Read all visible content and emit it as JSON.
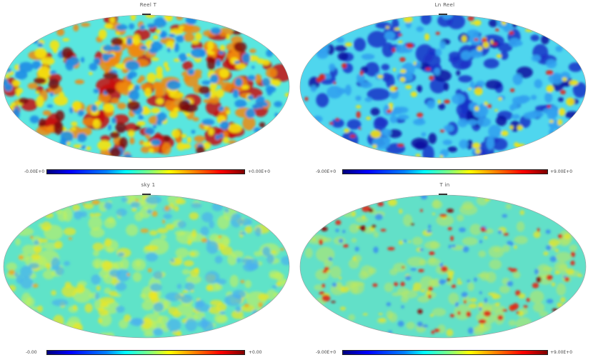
{
  "panels": [
    {
      "title": "Reel T",
      "cb_min": "-0.00E+0",
      "cb_max": "+0.00E+0",
      "background": "#59e6df",
      "features": [
        {
          "color": "#c81010",
          "count": 70,
          "rmin": 5,
          "rmax": 13,
          "opacity": 0.85
        },
        {
          "color": "#f08a12",
          "count": 120,
          "rmin": 4,
          "rmax": 9,
          "opacity": 0.85
        },
        {
          "color": "#f5e312",
          "count": 130,
          "rmin": 3,
          "rmax": 7,
          "opacity": 0.9
        },
        {
          "color": "#1f8de6",
          "count": 110,
          "rmin": 3,
          "rmax": 7,
          "opacity": 0.9
        },
        {
          "color": "#7b0a0a",
          "count": 25,
          "rmin": 4,
          "rmax": 8,
          "opacity": 0.85
        }
      ]
    },
    {
      "title": "Ln Reel",
      "cb_min": "-9.00E+0",
      "cb_max": "+9.00E+0",
      "background": "#4fd6ee",
      "features": [
        {
          "color": "#1a33c8",
          "count": 80,
          "rmin": 5,
          "rmax": 12,
          "opacity": 0.85
        },
        {
          "color": "#0a10a0",
          "count": 40,
          "rmin": 4,
          "rmax": 9,
          "opacity": 0.85
        },
        {
          "color": "#32a2f0",
          "count": 90,
          "rmin": 4,
          "rmax": 8,
          "opacity": 0.9
        },
        {
          "color": "#f5e312",
          "count": 55,
          "rmin": 2,
          "rmax": 5,
          "opacity": 0.9
        },
        {
          "color": "#e0281e",
          "count": 35,
          "rmin": 2,
          "rmax": 4,
          "opacity": 0.9
        }
      ]
    },
    {
      "title": "sky 1",
      "cb_min": "-0.00",
      "cb_max": "+0.00",
      "background": "#5fe3c8",
      "features": [
        {
          "color": "#c5f05a",
          "count": 140,
          "rmin": 4,
          "rmax": 10,
          "opacity": 0.6
        },
        {
          "color": "#f0e620",
          "count": 90,
          "rmin": 3,
          "rmax": 7,
          "opacity": 0.7
        },
        {
          "color": "#4ab0ee",
          "count": 80,
          "rmin": 3,
          "rmax": 8,
          "opacity": 0.7
        },
        {
          "color": "#f5a41a",
          "count": 20,
          "rmin": 2,
          "rmax": 4,
          "opacity": 0.8
        }
      ]
    },
    {
      "title": "T in",
      "cb_min": "-9.00E+0",
      "cb_max": "+9.00E+0",
      "background": "#62e0c8",
      "features": [
        {
          "color": "#bde85e",
          "count": 120,
          "rmin": 4,
          "rmax": 9,
          "opacity": 0.55
        },
        {
          "color": "#f0e620",
          "count": 60,
          "rmin": 2,
          "rmax": 5,
          "opacity": 0.7
        },
        {
          "color": "#3a8ef0",
          "count": 50,
          "rmin": 2,
          "rmax": 4,
          "opacity": 0.85
        },
        {
          "color": "#e02818",
          "count": 55,
          "rmin": 2,
          "rmax": 4,
          "opacity": 0.9
        },
        {
          "color": "#8a0c0c",
          "count": 12,
          "rmin": 2,
          "rmax": 4,
          "opacity": 0.9
        }
      ]
    }
  ]
}
